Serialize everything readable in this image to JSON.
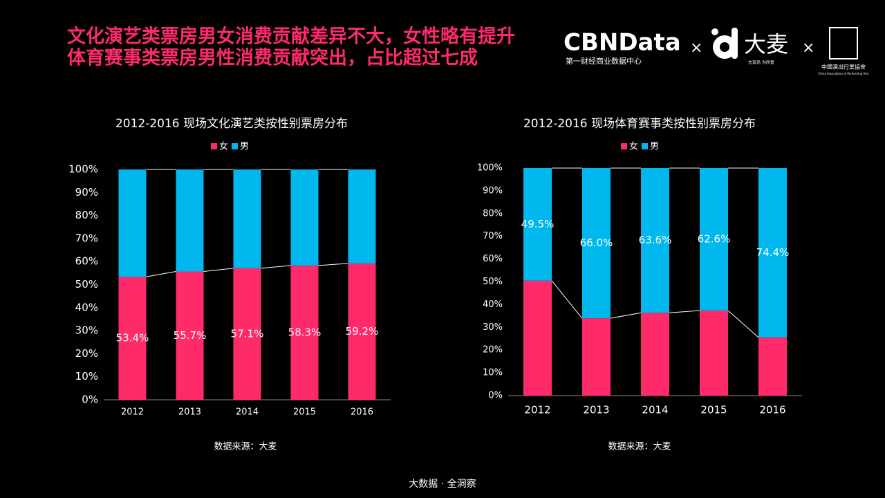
{
  "header": {
    "title_lines": [
      "文化演艺类票房男女消费贡献差异不大，女性略有提升",
      "体育赛事类票房男性消费贡献突出，占比超过七成"
    ],
    "logos": {
      "cbn": "CBNData",
      "cbn_sub": "第一财经商业数据中心",
      "times": "×",
      "damai": "大麦",
      "damai_sub": "去现场 为所爱",
      "capa": "中國演出行業協會",
      "capa_sub": "China Association of Performing Arts"
    }
  },
  "chart_data": [
    {
      "type": "bar",
      "stacked": true,
      "title": "2012-2016 现场文化演艺类按性别票房分布",
      "categories": [
        "2012",
        "2013",
        "2014",
        "2015",
        "2016"
      ],
      "series": [
        {
          "name": "女",
          "color": "#ff2a6a",
          "values": [
            53.4,
            55.7,
            57.1,
            58.3,
            59.2
          ],
          "value_labels": [
            "53.4%",
            "55.7%",
            "57.1%",
            "58.3%",
            "59.2%"
          ]
        },
        {
          "name": "男",
          "color": "#00b7ee",
          "values": [
            46.6,
            44.3,
            42.9,
            41.7,
            40.8
          ]
        }
      ],
      "ylim": [
        0,
        100
      ],
      "yticks": [
        {
          "value": 0,
          "label": "0%"
        },
        {
          "value": 10,
          "label": "10%"
        },
        {
          "value": 20,
          "label": "20%"
        },
        {
          "value": 30,
          "label": "30%"
        },
        {
          "value": 40,
          "label": "40%"
        },
        {
          "value": 50,
          "label": "50%"
        },
        {
          "value": 60,
          "label": "60%"
        },
        {
          "value": 70,
          "label": "70%"
        },
        {
          "value": 80,
          "label": "80%"
        },
        {
          "value": 90,
          "label": "90%"
        },
        {
          "value": 100,
          "label": "100%"
        }
      ],
      "source": "数据来源：大麦"
    },
    {
      "type": "bar",
      "stacked": true,
      "title": "2012-2016 现场体育赛事类按性别票房分布",
      "categories": [
        "2012",
        "2013",
        "2014",
        "2015",
        "2016"
      ],
      "series": [
        {
          "name": "女",
          "color": "#ff2a6a",
          "values": [
            50.5,
            34.0,
            36.4,
            37.4,
            25.6
          ]
        },
        {
          "name": "男",
          "color": "#00b7ee",
          "values": [
            49.5,
            66.0,
            63.6,
            62.6,
            74.4
          ],
          "value_labels": [
            "49.5%",
            "66.0%",
            "63.6%",
            "62.6%",
            "74.4%"
          ]
        }
      ],
      "ylim": [
        0,
        100
      ],
      "yticks": [
        {
          "value": 0,
          "label": "0%"
        },
        {
          "value": 10,
          "label": "10%"
        },
        {
          "value": 20,
          "label": "20%"
        },
        {
          "value": 30,
          "label": "30%"
        },
        {
          "value": 40,
          "label": "40%"
        },
        {
          "value": 50,
          "label": "50%"
        },
        {
          "value": 60,
          "label": "60%"
        },
        {
          "value": 70,
          "label": "70%"
        },
        {
          "value": 80,
          "label": "80%"
        },
        {
          "value": 90,
          "label": "90%"
        },
        {
          "value": 100,
          "label": "100%"
        }
      ],
      "source": "数据来源：大麦"
    }
  ],
  "footer": "大数据 · 全洞察"
}
